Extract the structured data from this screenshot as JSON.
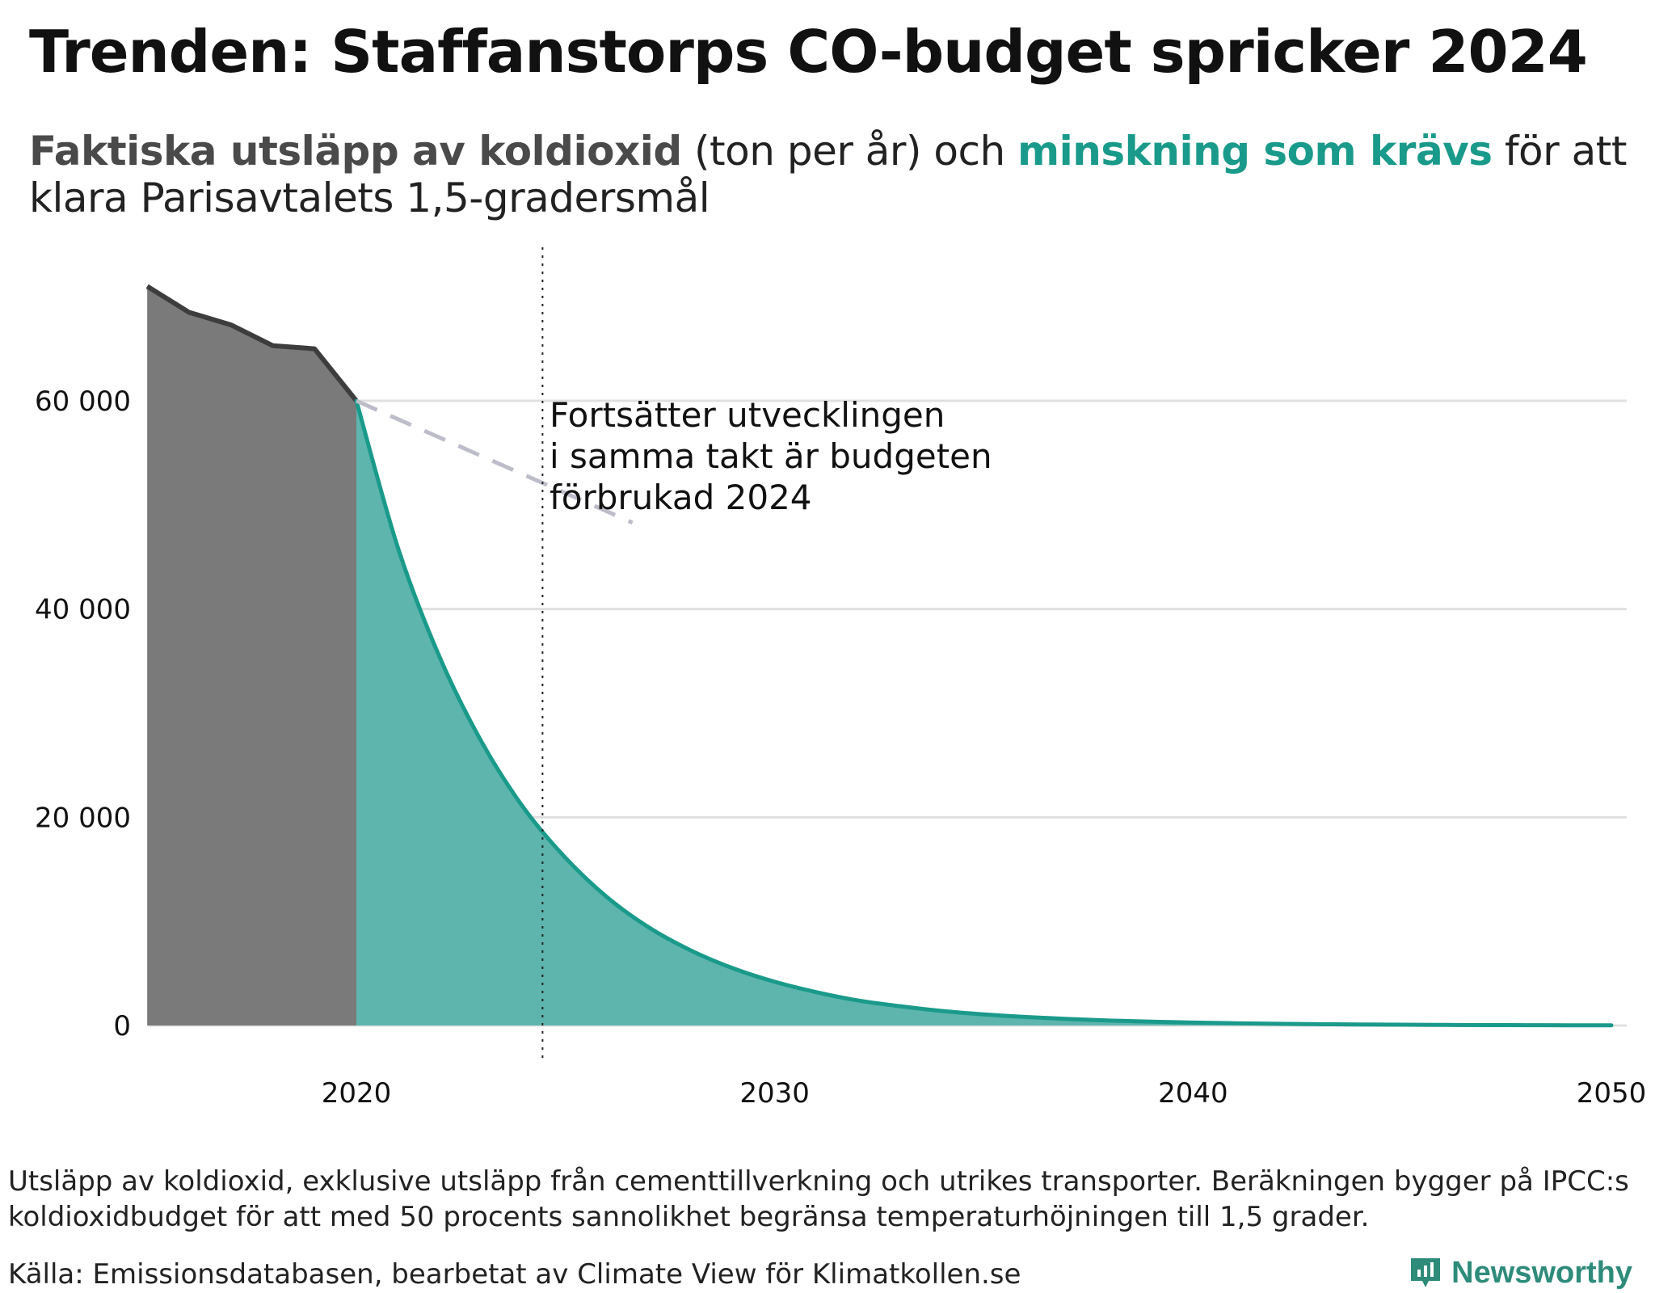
{
  "title": "Trenden: Staffanstorps CO-budget spricker 2024",
  "subtitle": {
    "actual_label": "Faktiska utsläpp av koldioxid",
    "unit_text": " (ton per år) och ",
    "required_label": "minskning som krävs",
    "rest_text": " för att klara Parisavtalets 1,5-gradersmål"
  },
  "colors": {
    "actual_fill": "#7a7a7a",
    "actual_line": "#3d3d3d",
    "required_fill": "#5db5ad",
    "required_line": "#1a9a8a",
    "trend_dash": "#bdbdc9",
    "grid": "#e0e0e0"
  },
  "chart_data": {
    "type": "area",
    "xlim": [
      2015,
      2050
    ],
    "ylim": [
      0,
      70000
    ],
    "x_ticks": [
      2020,
      2030,
      2040,
      2050
    ],
    "x_tick_labels": [
      "2020",
      "2030",
      "2040",
      "2050"
    ],
    "y_ticks": [
      0,
      20000,
      40000,
      60000
    ],
    "y_tick_labels": [
      "0",
      "20 000",
      "40 000",
      "60 000"
    ],
    "grid": true,
    "series": [
      {
        "name": "Faktiska utsläpp av koldioxid",
        "x": [
          2015,
          2016,
          2017,
          2018,
          2019,
          2020
        ],
        "values": [
          71000,
          68500,
          67300,
          65300,
          65000,
          60000
        ]
      },
      {
        "name": "Minskning som krävs",
        "x": [
          2020,
          2021,
          2022,
          2023,
          2024,
          2025,
          2026,
          2027,
          2028,
          2029,
          2030,
          2031,
          2032,
          2033,
          2034,
          2035,
          2036,
          2037,
          2038,
          2039,
          2040,
          2041,
          2042,
          2043,
          2044,
          2045,
          2046,
          2047,
          2048,
          2049,
          2050
        ],
        "values": [
          60000,
          45800,
          35300,
          27200,
          20900,
          16100,
          12300,
          9400,
          7200,
          5500,
          4200,
          3200,
          2400,
          1850,
          1400,
          1070,
          820,
          630,
          480,
          370,
          280,
          215,
          165,
          125,
          95,
          75,
          55,
          42,
          32,
          24,
          18
        ]
      },
      {
        "name": "Fortsatt trend",
        "style": "dashed",
        "x": [
          2020,
          2026.6
        ],
        "values": [
          60000,
          48300
        ]
      }
    ],
    "reference_line": {
      "x": 2024.45,
      "style": "dotted"
    },
    "annotation": {
      "lines": [
        "Fortsätter utvecklingen",
        "i samma takt är budgeten",
        "förbrukad 2024"
      ]
    }
  },
  "footnote": "Utsläpp av koldioxid, exklusive utsläpp från cementtillverkning och utrikes transporter. Beräkningen bygger på IPCC:s koldioxidbudget för att med 50 procents sannolikhet begränsa temperaturhöjningen till 1,5 grader.",
  "source": "Källa: Emissionsdatabasen, bearbetat av Climate View för Klimatkollen.se",
  "brand": "Newsworthy"
}
